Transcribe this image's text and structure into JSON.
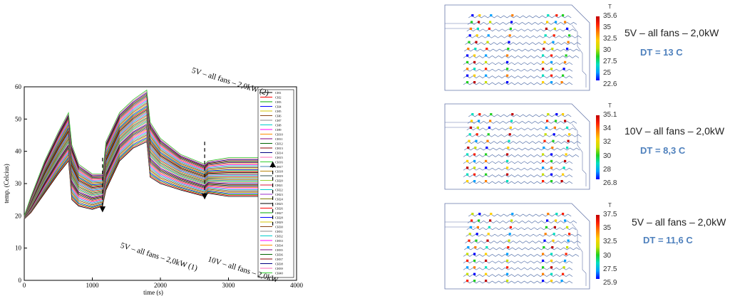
{
  "chart_data": {
    "type": "line",
    "xlabel": "time (s)",
    "ylabel": "temp. (Celcius)",
    "xlim": [
      0,
      4000
    ],
    "ylim": [
      0,
      60
    ],
    "xticks": [
      0,
      1000,
      2000,
      3000,
      4000
    ],
    "yticks": [
      0,
      10,
      20,
      30,
      40,
      50,
      60
    ],
    "legend_position": "right",
    "legend_entries": [
      "CH1",
      "CH2",
      "CH3",
      "CH4",
      "CH5",
      "CH6",
      "CH7",
      "CH8",
      "CH9",
      "CH10",
      "CH11",
      "CH12",
      "CH13",
      "CH14",
      "CH15",
      "CH16",
      "CH17",
      "CH18",
      "CH19",
      "CH20",
      "CH21",
      "CH22",
      "CH23",
      "CH24",
      "CH25",
      "CH26",
      "CH27",
      "CH28",
      "CH29",
      "CH30",
      "CH31",
      "CH32",
      "CH33",
      "CH34",
      "CH35",
      "CH36",
      "CH37",
      "CH38",
      "CH39",
      "CH40"
    ],
    "legend_colors": [
      "#000000",
      "#ff0000",
      "#00aa00",
      "#0000ff",
      "#d4c400",
      "#8b4513",
      "#888888",
      "#00cccc",
      "#ff00ff",
      "#ff8c00",
      "#800080",
      "#006400",
      "#8b0000",
      "#000080",
      "#ff69b4",
      "#32cd32",
      "#4682b4",
      "#b8860b",
      "#2f4f4f",
      "#9acd32",
      "#dc143c",
      "#00ced1",
      "#9932cc",
      "#808000",
      "#000000",
      "#ff0000",
      "#00aa00",
      "#0000ff",
      "#d4c400",
      "#8b4513",
      "#888888",
      "#00cccc",
      "#ff00ff",
      "#ff8c00",
      "#800080",
      "#006400",
      "#8b0000",
      "#000080",
      "#ff69b4",
      "#32cd32"
    ],
    "envelope": {
      "x": [
        0,
        100,
        300,
        500,
        650,
        700,
        800,
        1000,
        1150,
        1200,
        1400,
        1600,
        1800,
        1850,
        2000,
        2300,
        2650,
        2700,
        3000,
        3500,
        3750
      ],
      "upper": [
        20,
        26,
        37,
        46,
        52,
        42,
        36,
        33,
        33,
        43,
        52,
        56,
        59,
        49,
        44,
        39,
        36,
        37,
        38,
        38,
        38
      ],
      "lower": [
        19,
        21,
        27,
        33,
        37,
        25,
        23,
        22,
        23,
        28,
        37,
        41,
        43,
        32,
        30,
        28,
        26,
        27,
        26,
        26,
        26
      ]
    },
    "annotations": [
      {
        "text": "5V – all fans – 2,0kW (1)",
        "x": 1150,
        "y_from": 38,
        "y_to": 22,
        "arrow": "down"
      },
      {
        "text": "10V – all fans – 2,0kW",
        "x": 2650,
        "y_from": 43,
        "y_to": 26,
        "arrow": "down"
      },
      {
        "text": "5V – all fans – 2,0kW (2)",
        "x": 3650,
        "y_from": 17,
        "y_to": 36,
        "arrow": "up"
      }
    ]
  },
  "panels": [
    {
      "condition": "5V – all fans – 2,0kW",
      "dt": "DT = 13 C",
      "scale_title": "T",
      "scale_ticks": [
        "35.6",
        "35",
        "32.5",
        "30",
        "27.5",
        "25",
        "22.6"
      ]
    },
    {
      "condition": "10V – all fans – 2,0kW",
      "dt": "DT = 8,3 C",
      "scale_title": "T",
      "scale_ticks": [
        "35.1",
        "34",
        "32",
        "30",
        "28",
        "26.8"
      ]
    },
    {
      "condition": "5V – all fans – 2,0kW",
      "dt": "DT = 11,6 C",
      "scale_title": "T",
      "scale_ticks": [
        "37.5",
        "35",
        "32.5",
        "30",
        "27.5",
        "25.9"
      ]
    }
  ],
  "colormap": [
    "#0000ff",
    "#00a0ff",
    "#00e0c0",
    "#20d020",
    "#c8e000",
    "#ffd000",
    "#ff8000",
    "#ff2000",
    "#c00000"
  ]
}
